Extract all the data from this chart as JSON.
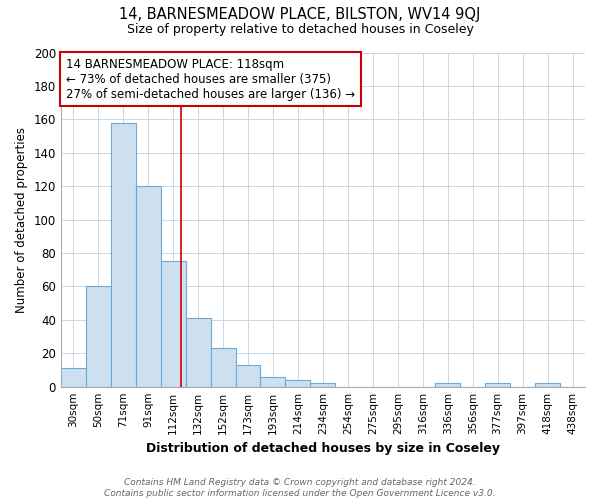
{
  "title": "14, BARNESMEADOW PLACE, BILSTON, WV14 9QJ",
  "subtitle": "Size of property relative to detached houses in Coseley",
  "xlabel": "Distribution of detached houses by size in Coseley",
  "ylabel": "Number of detached properties",
  "categories": [
    "30sqm",
    "50sqm",
    "71sqm",
    "91sqm",
    "112sqm",
    "132sqm",
    "152sqm",
    "173sqm",
    "193sqm",
    "214sqm",
    "234sqm",
    "254sqm",
    "275sqm",
    "295sqm",
    "316sqm",
    "336sqm",
    "356sqm",
    "377sqm",
    "397sqm",
    "418sqm",
    "438sqm"
  ],
  "values": [
    11,
    60,
    158,
    120,
    75,
    41,
    23,
    13,
    6,
    4,
    2,
    0,
    0,
    0,
    0,
    2,
    0,
    2,
    0,
    2,
    0
  ],
  "bar_color": "#cce0f0",
  "bar_edge_color": "#6aaad4",
  "ylim": [
    0,
    200
  ],
  "yticks": [
    0,
    20,
    40,
    60,
    80,
    100,
    120,
    140,
    160,
    180,
    200
  ],
  "vline_x": 4.3,
  "vline_color": "#cc0000",
  "annotation_text": "14 BARNESMEADOW PLACE: 118sqm\n← 73% of detached houses are smaller (375)\n27% of semi-detached houses are larger (136) →",
  "annotation_box_color": "#cc0000",
  "footer_line1": "Contains HM Land Registry data © Crown copyright and database right 2024.",
  "footer_line2": "Contains public sector information licensed under the Open Government Licence v3.0.",
  "background_color": "#ffffff",
  "plot_bg_color": "#ffffff",
  "grid_color": "#c8d8e8"
}
